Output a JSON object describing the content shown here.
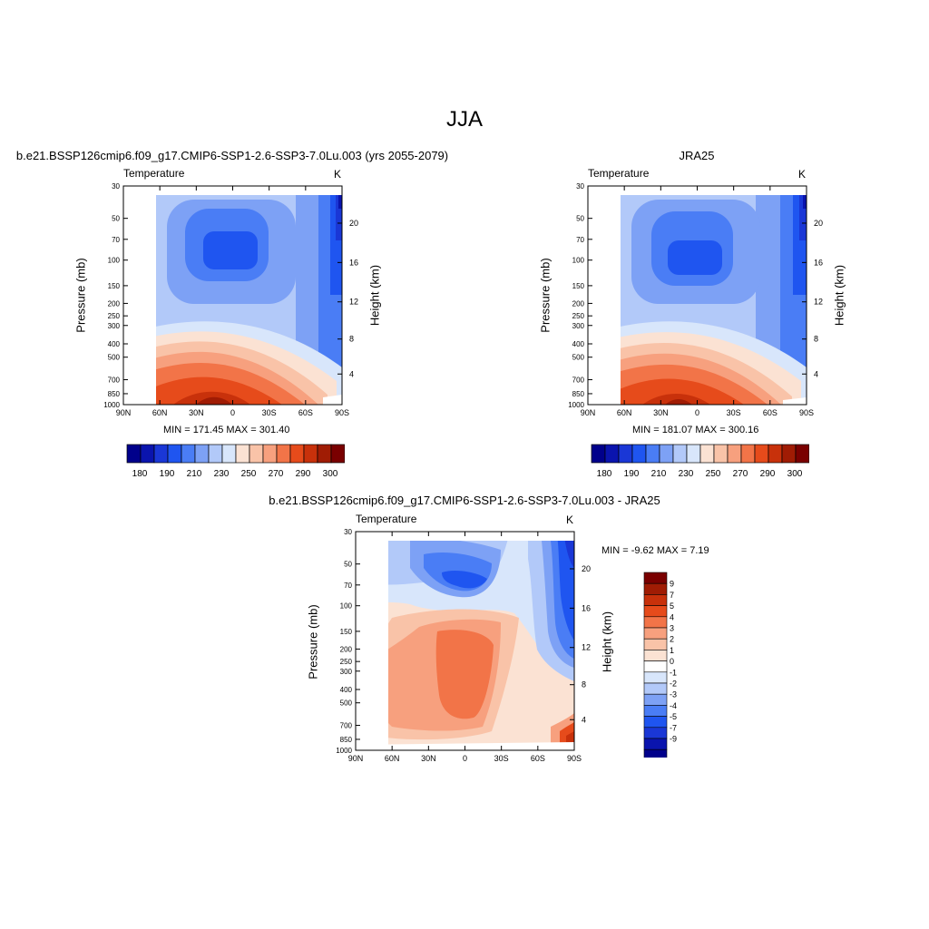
{
  "page": {
    "suptitle": "JJA"
  },
  "colors": {
    "palette": [
      "#00008b",
      "#0a14ae",
      "#1a37d6",
      "#1f55f0",
      "#4a7df5",
      "#7da1f5",
      "#b2c9f9",
      "#d8e6fb",
      "#fbe2d3",
      "#f9c3a8",
      "#f7a07e",
      "#f27448",
      "#e64b1b",
      "#c8310b",
      "#a01c04",
      "#7a0000"
    ]
  },
  "chart_data": [
    {
      "type": "heatmap",
      "subtitle": "b.e21.BSSP126cmip6.f09_g17.CMIP6-SSP1-2.6-SSP3-7.0Lu.003 (yrs 2055-2079)",
      "left_label": "Temperature",
      "right_label": "K",
      "ylabel": "Pressure (mb)",
      "y2label": "Height (km)",
      "xticks": [
        "90N",
        "60N",
        "30N",
        "0",
        "30S",
        "60S",
        "90S"
      ],
      "yticks": [
        "30",
        "50",
        "70",
        "100",
        "150",
        "200",
        "250",
        "300",
        "400",
        "500",
        "700",
        "850",
        "1000"
      ],
      "y2ticks": [
        "20",
        "16",
        "12",
        "8",
        "4"
      ],
      "stats": "MIN = 171.45  MAX = 301.40",
      "min": 171.45,
      "max": 301.4,
      "colorbar": {
        "orientation": "horizontal",
        "labels": [
          "180",
          "190",
          "210",
          "230",
          "250",
          "270",
          "290",
          "300"
        ]
      }
    },
    {
      "type": "heatmap",
      "subtitle": "JRA25",
      "left_label": "Temperature",
      "right_label": "K",
      "ylabel": "Pressure (mb)",
      "y2label": "Height (km)",
      "xticks": [
        "90N",
        "60N",
        "30N",
        "0",
        "30S",
        "60S",
        "90S"
      ],
      "yticks": [
        "30",
        "50",
        "70",
        "100",
        "150",
        "200",
        "250",
        "300",
        "400",
        "500",
        "700",
        "850",
        "1000"
      ],
      "y2ticks": [
        "20",
        "16",
        "12",
        "8",
        "4"
      ],
      "stats": "MIN = 181.07  MAX = 300.16",
      "min": 181.07,
      "max": 300.16,
      "colorbar": {
        "orientation": "horizontal",
        "labels": [
          "180",
          "190",
          "210",
          "230",
          "250",
          "270",
          "290",
          "300"
        ]
      }
    },
    {
      "type": "heatmap",
      "subtitle": "b.e21.BSSP126cmip6.f09_g17.CMIP6-SSP1-2.6-SSP3-7.0Lu.003 - JRA25",
      "left_label": "Temperature",
      "right_label": "K",
      "ylabel": "Pressure (mb)",
      "y2label": "Height (km)",
      "xticks": [
        "90N",
        "60N",
        "30N",
        "0",
        "30S",
        "60S",
        "90S"
      ],
      "yticks": [
        "30",
        "50",
        "70",
        "100",
        "150",
        "200",
        "250",
        "300",
        "400",
        "500",
        "700",
        "850",
        "1000"
      ],
      "y2ticks": [
        "20",
        "16",
        "12",
        "8",
        "4"
      ],
      "stats": "MIN =  -9.62  MAX =   7.19",
      "min": -9.62,
      "max": 7.19,
      "colorbar": {
        "orientation": "vertical",
        "labels": [
          "9",
          "7",
          "5",
          "4",
          "3",
          "2",
          "1",
          "0",
          "-1",
          "-2",
          "-3",
          "-4",
          "-5",
          "-7",
          "-9"
        ]
      }
    }
  ]
}
